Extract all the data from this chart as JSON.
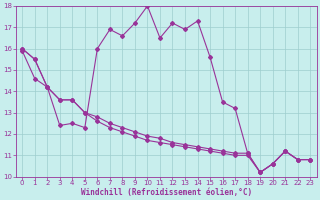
{
  "xlabel": "Windchill (Refroidissement éolien,°C)",
  "xlim": [
    -0.5,
    23.5
  ],
  "ylim": [
    10,
    18
  ],
  "yticks": [
    10,
    11,
    12,
    13,
    14,
    15,
    16,
    17,
    18
  ],
  "xticks": [
    0,
    1,
    2,
    3,
    4,
    5,
    6,
    7,
    8,
    9,
    10,
    11,
    12,
    13,
    14,
    15,
    16,
    17,
    18,
    19,
    20,
    21,
    22,
    23
  ],
  "bg_color": "#c8eeed",
  "line_color": "#993399",
  "grid_color": "#9ecece",
  "series1_x": [
    0,
    1,
    2,
    3,
    4,
    5,
    6,
    7,
    8,
    9,
    10,
    11,
    12,
    13,
    14,
    15,
    16,
    17,
    18,
    19,
    20,
    21,
    22,
    23
  ],
  "series1_y": [
    15.9,
    14.6,
    14.2,
    12.4,
    12.5,
    12.3,
    16.0,
    16.9,
    16.6,
    17.2,
    18.0,
    16.5,
    17.2,
    16.9,
    17.3,
    15.6,
    13.5,
    13.2,
    11.1,
    10.2,
    10.6,
    11.2,
    10.8,
    10.8
  ],
  "series2_x": [
    0,
    1,
    2,
    3,
    4,
    5,
    6,
    7,
    8,
    9,
    10,
    11,
    12,
    13,
    14,
    15,
    16,
    17,
    18,
    19,
    20,
    21,
    22,
    23
  ],
  "series2_y": [
    16.0,
    15.5,
    14.2,
    13.6,
    13.6,
    13.0,
    12.8,
    12.5,
    12.3,
    12.1,
    11.9,
    11.8,
    11.6,
    11.5,
    11.4,
    11.3,
    11.2,
    11.1,
    11.1,
    10.2,
    10.6,
    11.2,
    10.8,
    10.8
  ],
  "series3_x": [
    0,
    1,
    2,
    3,
    4,
    5,
    6,
    7,
    8,
    9,
    10,
    11,
    12,
    13,
    14,
    15,
    16,
    17,
    18,
    19,
    20,
    21,
    22,
    23
  ],
  "series3_y": [
    16.0,
    15.5,
    14.2,
    13.6,
    13.6,
    13.0,
    12.6,
    12.3,
    12.1,
    11.9,
    11.7,
    11.6,
    11.5,
    11.4,
    11.3,
    11.2,
    11.1,
    11.0,
    11.0,
    10.2,
    10.6,
    11.2,
    10.8,
    10.8
  ]
}
